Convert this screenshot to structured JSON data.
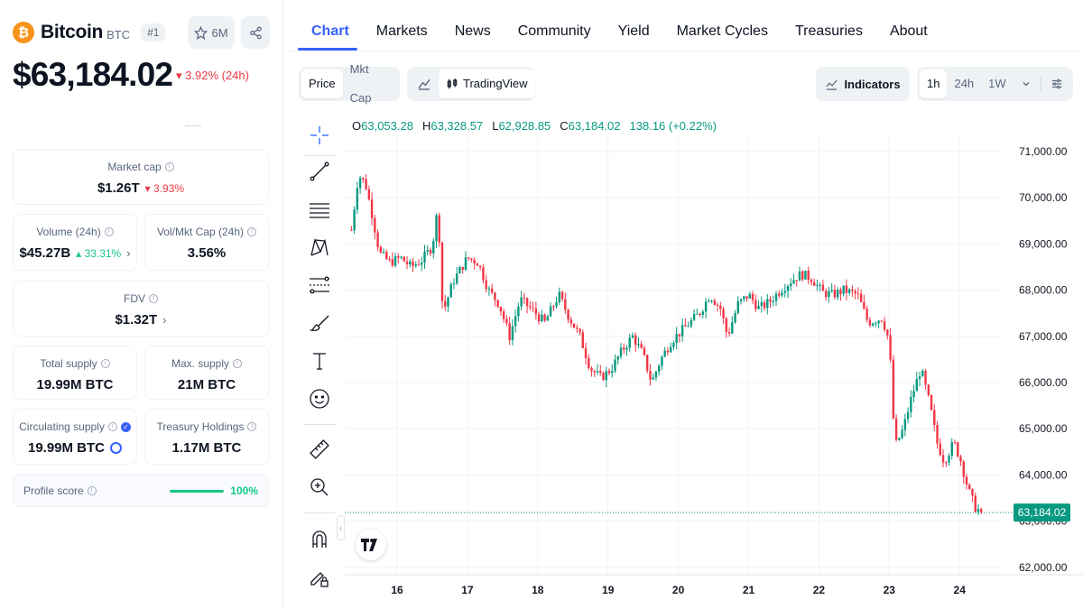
{
  "coin": {
    "logo_glyph": "₿",
    "name": "Bitcoin",
    "symbol": "BTC",
    "rank": "#1",
    "watchlist_count": "6M",
    "price": "$63,184.02",
    "change_24h": "▾ 3.92% (24h)"
  },
  "stats": {
    "market_cap": {
      "label": "Market cap",
      "value": "$1.26T",
      "change": "▾ 3.93%"
    },
    "volume": {
      "label": "Volume (24h)",
      "value": "$45.27B",
      "change": "▴ 33.31%"
    },
    "vol_mkt_cap": {
      "label": "Vol/Mkt Cap (24h)",
      "value": "3.56%"
    },
    "fdv": {
      "label": "FDV",
      "value": "$1.32T"
    },
    "total_supply": {
      "label": "Total supply",
      "value": "19.99M BTC"
    },
    "max_supply": {
      "label": "Max. supply",
      "value": "21M BTC"
    },
    "circulating_supply": {
      "label": "Circulating supply",
      "value": "19.99M BTC"
    },
    "treasury_holdings": {
      "label": "Treasury Holdings",
      "value": "1.17M BTC"
    },
    "profile_score": {
      "label": "Profile score",
      "value": "100%",
      "fraction": 1.0
    }
  },
  "tabs": [
    "Chart",
    "Markets",
    "News",
    "Community",
    "Yield",
    "Market Cycles",
    "Treasuries",
    "About"
  ],
  "active_tab": "Chart",
  "toolbar": {
    "price_label": "Price",
    "mktcap_label": "Mkt Cap",
    "tradingview_label": "TradingView",
    "indicators_label": "Indicators",
    "ranges": [
      "1h",
      "24h",
      "1W"
    ],
    "active_range": "1h"
  },
  "ohlc": {
    "open_key": "O",
    "open": "63,053.28",
    "high_key": "H",
    "high": "63,328.57",
    "low_key": "L",
    "low": "62,928.85",
    "close_key": "C",
    "close": "63,184.02",
    "change": "138.16 (+0.22%)"
  },
  "colors": {
    "up": "#089981",
    "down": "#f23645",
    "accent": "#3861fb",
    "positive": "#16c784",
    "negative": "#ea3943"
  },
  "chart_data": {
    "type": "candlestick",
    "ylim": [
      61800,
      71300
    ],
    "y_ticks": [
      62000,
      63000,
      64000,
      65000,
      66000,
      67000,
      68000,
      69000,
      70000,
      71000
    ],
    "y_tick_labels": [
      "62,000.00",
      "63,000.00",
      "64,000.00",
      "65,000.00",
      "66,000.00",
      "67,000.00",
      "68,000.00",
      "69,000.00",
      "70,000.00",
      "71,000.00"
    ],
    "x_tick_labels": [
      "16",
      "17",
      "18",
      "19",
      "20",
      "21",
      "22",
      "23",
      "24"
    ],
    "current_price": 63184.02,
    "current_price_label": "63,184.02",
    "trend_path": [
      [
        15.35,
        69300
      ],
      [
        15.45,
        70500
      ],
      [
        15.55,
        70300
      ],
      [
        15.65,
        69600
      ],
      [
        15.75,
        68800
      ],
      [
        15.9,
        68600
      ],
      [
        16.05,
        68700
      ],
      [
        16.2,
        68500
      ],
      [
        16.35,
        68650
      ],
      [
        16.5,
        68950
      ],
      [
        16.58,
        69800
      ],
      [
        16.65,
        67500
      ],
      [
        16.8,
        68200
      ],
      [
        17.0,
        68700
      ],
      [
        17.15,
        68600
      ],
      [
        17.3,
        68000
      ],
      [
        17.45,
        67700
      ],
      [
        17.6,
        67000
      ],
      [
        17.75,
        67800
      ],
      [
        17.9,
        67600
      ],
      [
        18.1,
        67300
      ],
      [
        18.3,
        67900
      ],
      [
        18.45,
        67400
      ],
      [
        18.6,
        67000
      ],
      [
        18.75,
        66300
      ],
      [
        18.9,
        66100
      ],
      [
        19.05,
        66300
      ],
      [
        19.2,
        66700
      ],
      [
        19.35,
        67000
      ],
      [
        19.5,
        66600
      ],
      [
        19.62,
        66000
      ],
      [
        19.75,
        66500
      ],
      [
        19.9,
        66900
      ],
      [
        20.1,
        67200
      ],
      [
        20.3,
        67500
      ],
      [
        20.45,
        67900
      ],
      [
        20.6,
        67600
      ],
      [
        20.7,
        67000
      ],
      [
        20.85,
        67700
      ],
      [
        21.0,
        67900
      ],
      [
        21.15,
        67600
      ],
      [
        21.3,
        67750
      ],
      [
        21.45,
        68000
      ],
      [
        21.6,
        68200
      ],
      [
        21.75,
        68350
      ],
      [
        21.9,
        68250
      ],
      [
        22.05,
        67950
      ],
      [
        22.2,
        67900
      ],
      [
        22.35,
        68000
      ],
      [
        22.55,
        67900
      ],
      [
        22.7,
        67300
      ],
      [
        22.9,
        67400
      ],
      [
        23.0,
        66900
      ],
      [
        23.08,
        64600
      ],
      [
        23.2,
        65000
      ],
      [
        23.32,
        65700
      ],
      [
        23.45,
        66300
      ],
      [
        23.58,
        65500
      ],
      [
        23.68,
        64700
      ],
      [
        23.78,
        64300
      ],
      [
        23.92,
        64700
      ],
      [
        24.02,
        64300
      ],
      [
        24.12,
        63700
      ],
      [
        24.22,
        63300
      ],
      [
        24.32,
        63184.02
      ]
    ]
  }
}
